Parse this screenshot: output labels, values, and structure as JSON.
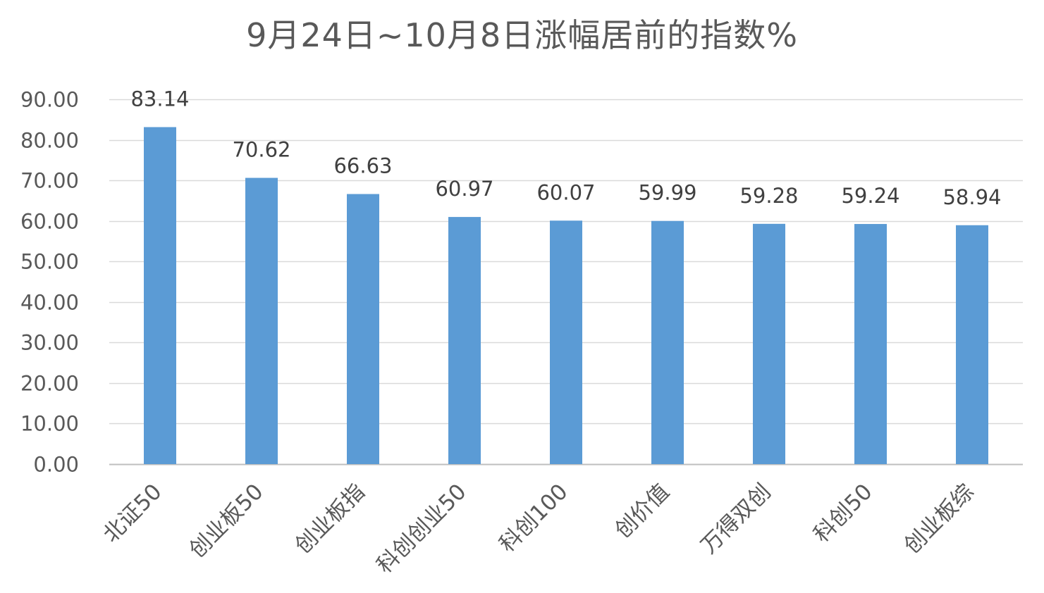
{
  "chart_data": {
    "type": "bar",
    "title": "9月24日~10月8日涨幅居前的指数%",
    "xlabel": "",
    "ylabel": "",
    "categories": [
      "北证50",
      "创业板50",
      "创业板指",
      "科创创业50",
      "科创100",
      "创价值",
      "万得双创",
      "科创50",
      "创业板综"
    ],
    "values": [
      83.14,
      70.62,
      66.63,
      60.97,
      60.07,
      59.99,
      59.28,
      59.24,
      58.94
    ],
    "data_labels": [
      "83.14",
      "70.62",
      "66.63",
      "60.97",
      "60.07",
      "59.99",
      "59.28",
      "59.24",
      "58.94"
    ],
    "ylim": [
      0,
      90
    ],
    "yticks": [
      0,
      10,
      20,
      30,
      40,
      50,
      60,
      70,
      80,
      90
    ],
    "ytick_labels": [
      "0.00",
      "10.00",
      "20.00",
      "30.00",
      "40.00",
      "50.00",
      "60.00",
      "70.00",
      "80.00",
      "90.00"
    ],
    "grid": true,
    "legend": "none",
    "colors": {
      "bar": "#5b9bd5",
      "grid": "#d9d9d9",
      "axis": "#d9d9d9",
      "text": "#595959"
    }
  }
}
